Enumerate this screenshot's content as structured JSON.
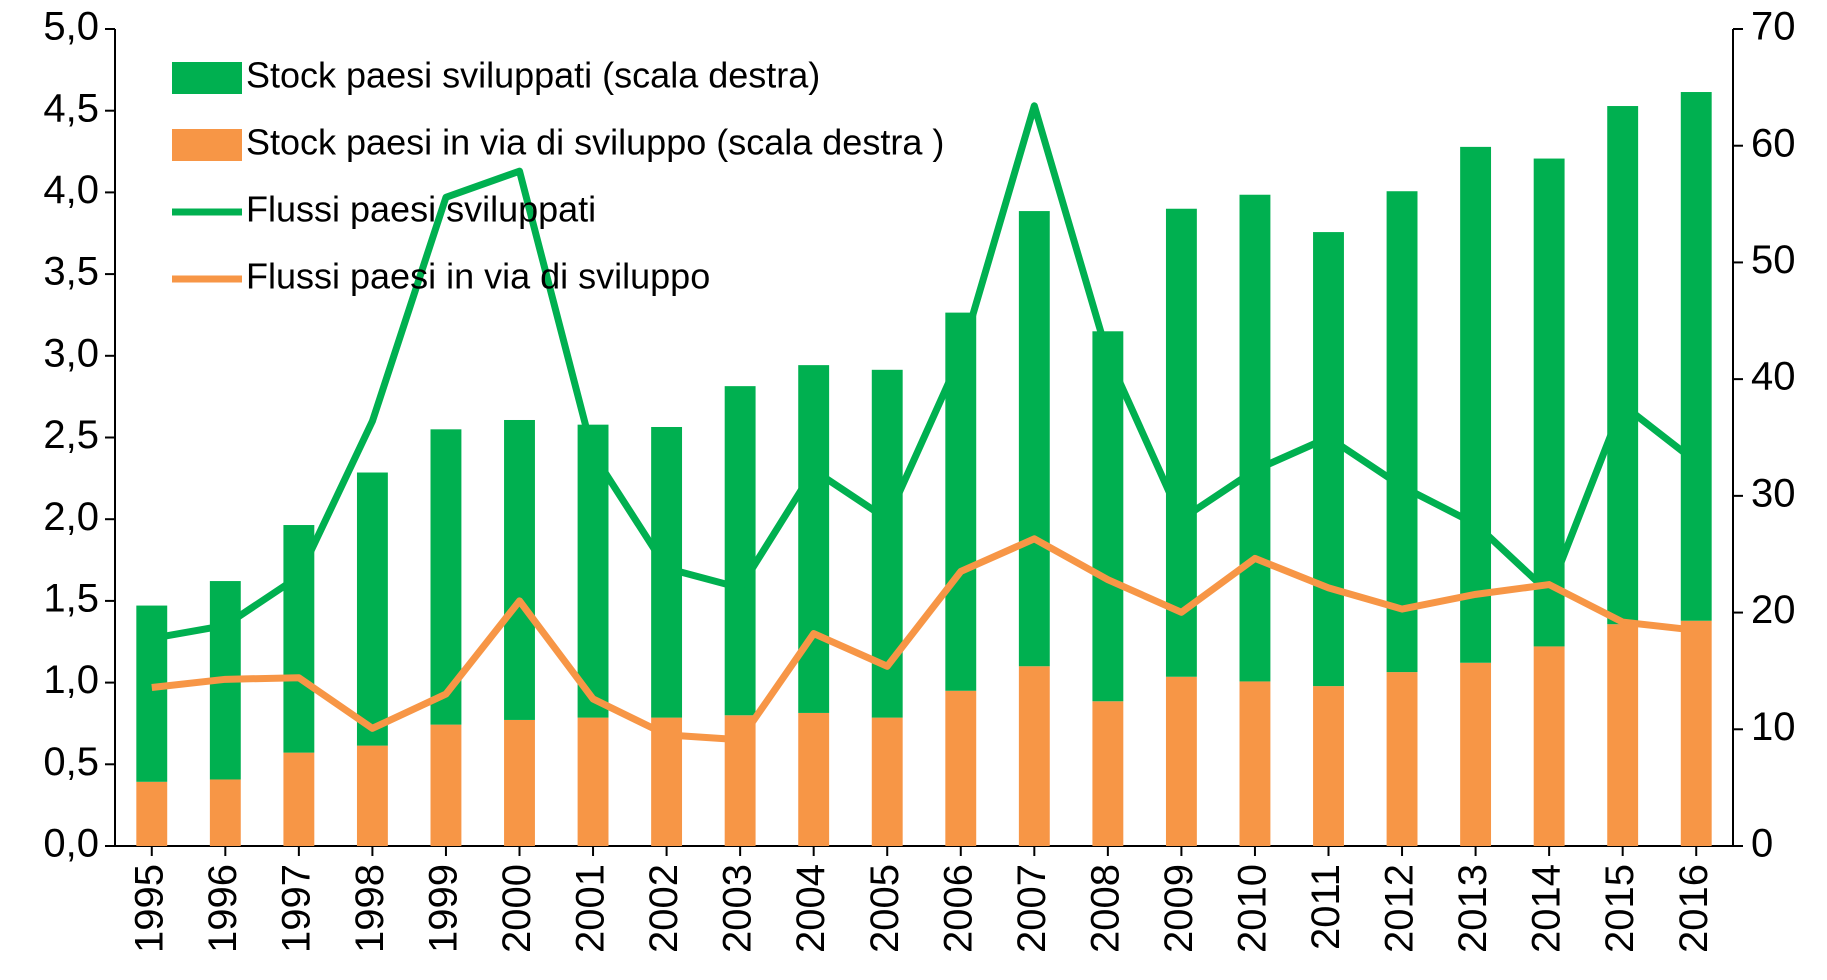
{
  "chart_data": {
    "type": "bar_line",
    "categories": [
      "1995",
      "1996",
      "1997",
      "1998",
      "1999",
      "2000",
      "2001",
      "2002",
      "2003",
      "2004",
      "2005",
      "2006",
      "2007",
      "2008",
      "2009",
      "2010",
      "2011",
      "2012",
      "2013",
      "2014",
      "2015",
      "2016"
    ],
    "stacked": true,
    "legend": "top-left",
    "grid": false,
    "series": [
      {
        "name": "Stock paesi sviluppati (scala destra)",
        "type": "bar",
        "axis": "y2",
        "color": "#00b050",
        "values": [
          15.1,
          17.0,
          19.5,
          23.4,
          25.3,
          25.7,
          25.1,
          24.9,
          28.2,
          29.8,
          29.8,
          32.4,
          39.0,
          31.7,
          40.1,
          41.7,
          38.9,
          41.2,
          44.2,
          41.8,
          44.4,
          45.3
        ]
      },
      {
        "name": "Stock paesi in via di sviluppo (scala destra )",
        "type": "bar",
        "axis": "y2",
        "color": "#f79646",
        "values": [
          5.5,
          5.7,
          8.0,
          8.6,
          10.4,
          10.8,
          11.0,
          11.0,
          11.2,
          11.4,
          11.0,
          13.3,
          15.4,
          12.4,
          14.5,
          14.1,
          13.7,
          14.9,
          15.7,
          17.1,
          19.0,
          19.3
        ]
      },
      {
        "name": "Flussi paesi sviluppati",
        "type": "line",
        "axis": "y",
        "color": "#00b050",
        "values": [
          1.27,
          1.35,
          1.65,
          2.6,
          3.97,
          4.13,
          2.4,
          1.7,
          1.58,
          2.3,
          2.0,
          3.0,
          4.53,
          3.0,
          2.0,
          2.3,
          2.5,
          2.2,
          1.97,
          1.55,
          2.7,
          2.35
        ]
      },
      {
        "name": "Flussi paesi in via di sviluppo",
        "type": "line",
        "axis": "y",
        "color": "#f79646",
        "values": [
          0.97,
          1.02,
          1.03,
          0.72,
          0.93,
          1.5,
          0.9,
          0.68,
          0.65,
          1.3,
          1.1,
          1.68,
          1.88,
          1.63,
          1.43,
          1.76,
          1.58,
          1.45,
          1.54,
          1.6,
          1.37,
          1.32
        ]
      }
    ],
    "ylim": [
      0,
      5
    ],
    "yticks": [
      {
        "value": 0,
        "label": "0,0"
      },
      {
        "value": 0.5,
        "label": "0,5"
      },
      {
        "value": 1,
        "label": "1,0"
      },
      {
        "value": 1.5,
        "label": "1,5"
      },
      {
        "value": 2,
        "label": "2,0"
      },
      {
        "value": 2.5,
        "label": "2,5"
      },
      {
        "value": 3,
        "label": "3,0"
      },
      {
        "value": 3.5,
        "label": "3,5"
      },
      {
        "value": 4,
        "label": "4,0"
      },
      {
        "value": 4.5,
        "label": "4,5"
      },
      {
        "value": 5,
        "label": "5,0"
      }
    ],
    "y2lim": [
      0,
      70
    ],
    "y2ticks": [
      0,
      10,
      20,
      30,
      40,
      50,
      60,
      70
    ]
  }
}
